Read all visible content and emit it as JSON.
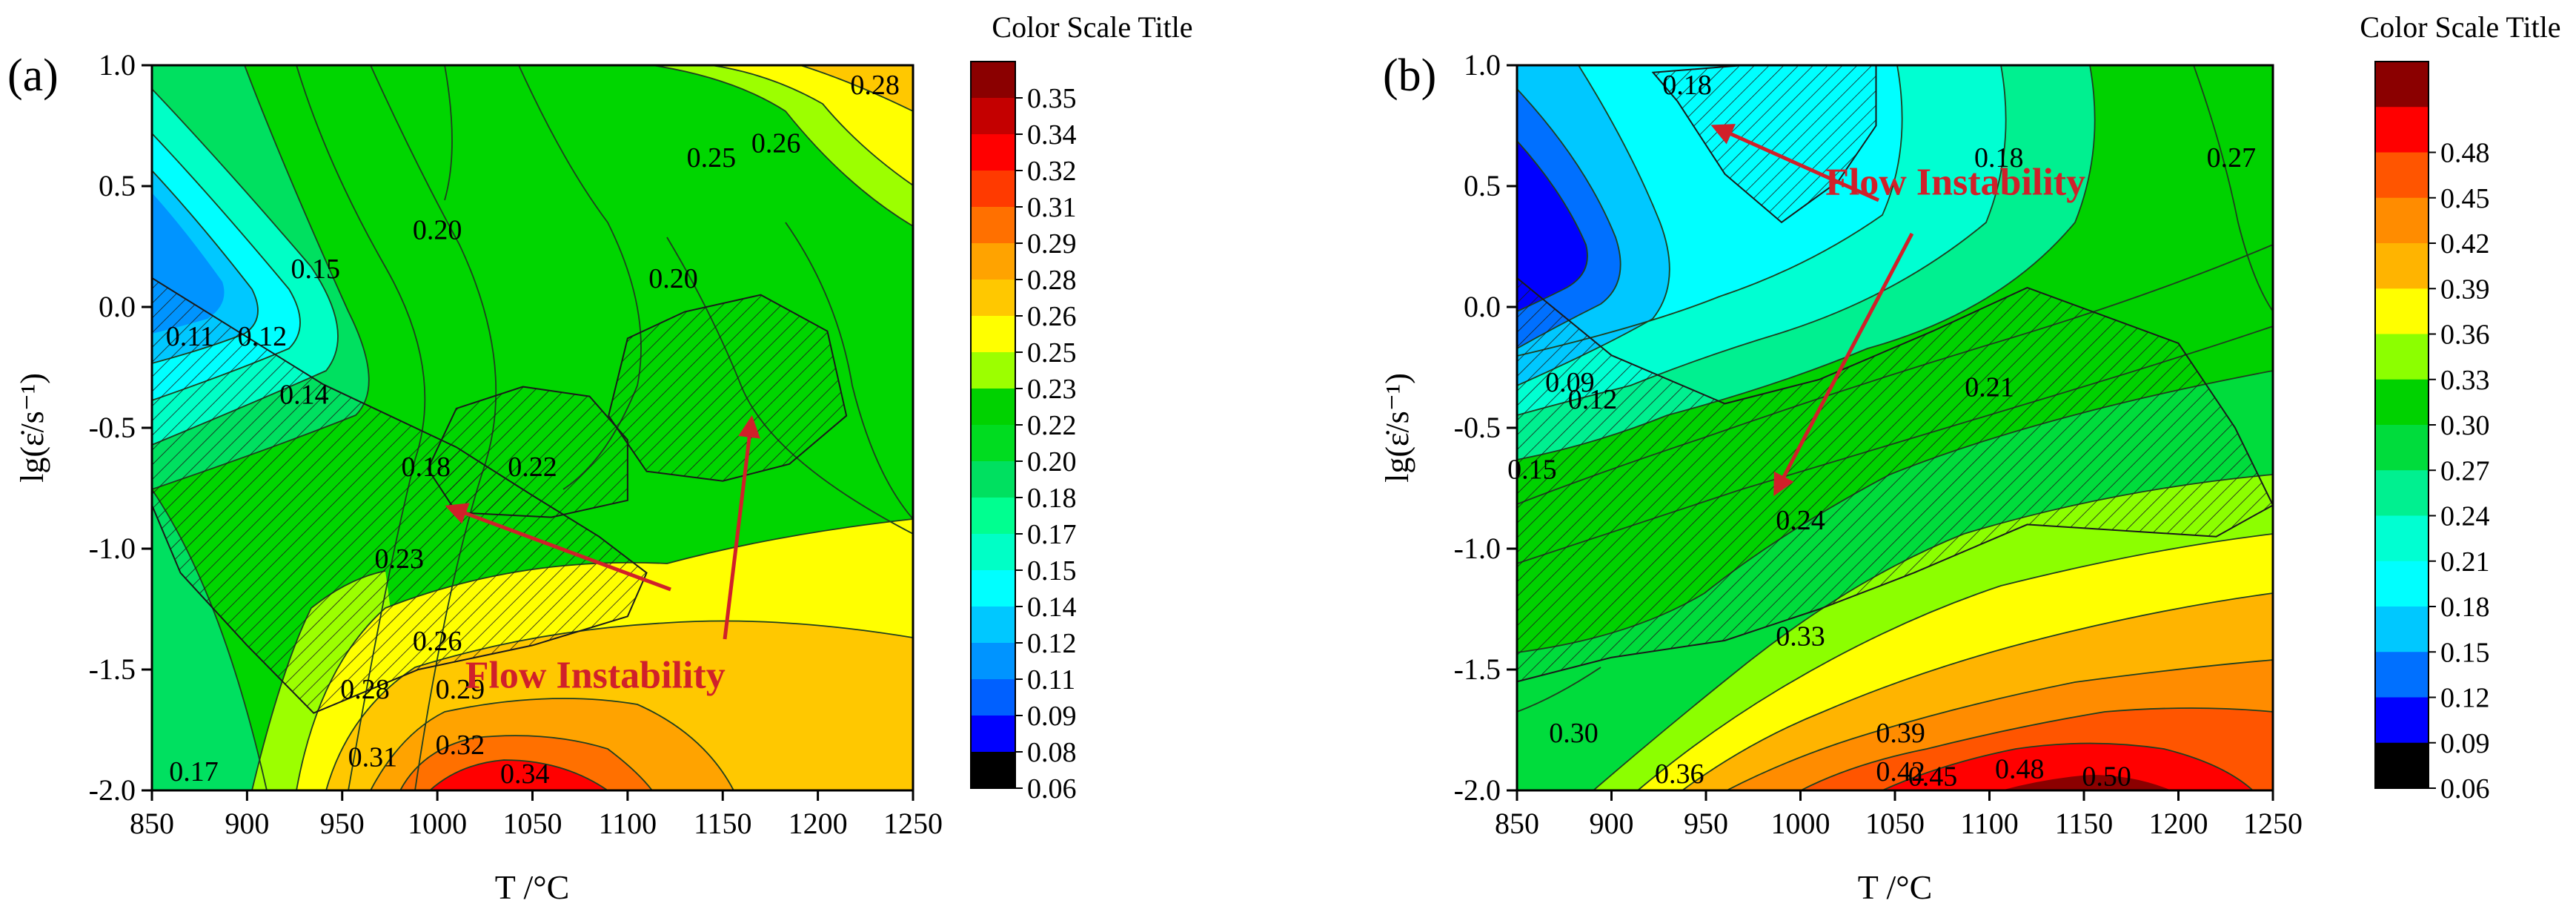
{
  "figure": {
    "panel_a_label": "(a)",
    "panel_b_label": "(b)"
  },
  "chart_data": [
    {
      "type": "heatmap",
      "panel": "(a)",
      "subtype": "contour (processing map)",
      "title": "",
      "xlabel": "T /°C",
      "ylabel": "lg(ε̇/s⁻¹)",
      "xlim": [
        850,
        1250
      ],
      "ylim": [
        -2.0,
        1.0
      ],
      "x_ticks": [
        "850",
        "900",
        "950",
        "1000",
        "1050",
        "1100",
        "1150",
        "1200",
        "1250"
      ],
      "y_ticks": [
        "-2.0",
        "-1.5",
        "-1.0",
        "-0.5",
        "0.0",
        "0.5",
        "1.0"
      ],
      "colorbar": {
        "title": "Color Scale Title",
        "levels": [
          "0.35",
          "0.34",
          "0.32",
          "0.31",
          "0.29",
          "0.28",
          "0.26",
          "0.25",
          "0.23",
          "0.22",
          "0.20",
          "0.18",
          "0.17",
          "0.15",
          "0.14",
          "0.12",
          "0.11",
          "0.09",
          "0.08",
          "0.06"
        ],
        "colors": [
          "#8b0000",
          "#c40000",
          "#ff0000",
          "#ff3a00",
          "#ff7000",
          "#ffa300",
          "#ffc800",
          "#ffff00",
          "#9cff00",
          "#00d200",
          "#00dc20",
          "#00e060",
          "#00ff90",
          "#00ffc6",
          "#00ffff",
          "#00c8ff",
          "#0094ff",
          "#0060ff",
          "#0000ff",
          "#000000"
        ]
      },
      "contour_labels": [
        {
          "text": "0.28",
          "T": 1230,
          "lg": 0.92
        },
        {
          "text": "0.26",
          "T": 1178,
          "lg": 0.68
        },
        {
          "text": "0.25",
          "T": 1144,
          "lg": 0.62
        },
        {
          "text": "0.20",
          "T": 1000,
          "lg": 0.32
        },
        {
          "text": "0.15",
          "T": 936,
          "lg": 0.16
        },
        {
          "text": "0.20",
          "T": 1124,
          "lg": 0.12
        },
        {
          "text": "0.11",
          "T": 870,
          "lg": -0.12
        },
        {
          "text": "0.12",
          "T": 908,
          "lg": -0.12
        },
        {
          "text": "0.14",
          "T": 930,
          "lg": -0.36
        },
        {
          "text": "0.18",
          "T": 994,
          "lg": -0.66
        },
        {
          "text": "0.22",
          "T": 1050,
          "lg": -0.66
        },
        {
          "text": "0.23",
          "T": 980,
          "lg": -1.04
        },
        {
          "text": "0.26",
          "T": 1000,
          "lg": -1.38
        },
        {
          "text": "0.28",
          "T": 962,
          "lg": -1.58
        },
        {
          "text": "0.29",
          "T": 1012,
          "lg": -1.58
        },
        {
          "text": "0.31",
          "T": 966,
          "lg": -1.86
        },
        {
          "text": "0.32",
          "T": 1012,
          "lg": -1.81
        },
        {
          "text": "0.34",
          "T": 1046,
          "lg": -1.93
        },
        {
          "text": "0.17",
          "T": 872,
          "lg": -1.92
        }
      ],
      "annotation": {
        "text": "Flow Instability",
        "T": 1083,
        "lg": -1.52
      },
      "instability_regions": [
        {
          "name": "left-diagonal",
          "vertices": [
            [
              850,
              0.12
            ],
            [
              940,
              -0.32
            ],
            [
              1010,
              -0.58
            ],
            [
              1050,
              -0.78
            ],
            [
              1085,
              -0.95
            ],
            [
              1110,
              -1.1
            ],
            [
              1100,
              -1.28
            ],
            [
              1050,
              -1.4
            ],
            [
              990,
              -1.5
            ],
            [
              935,
              -1.68
            ],
            [
              900,
              -1.4
            ],
            [
              865,
              -1.1
            ],
            [
              850,
              -0.82
            ]
          ]
        },
        {
          "name": "center",
          "vertices": [
            [
              995,
              -0.67
            ],
            [
              1010,
              -0.42
            ],
            [
              1045,
              -0.33
            ],
            [
              1080,
              -0.37
            ],
            [
              1100,
              -0.55
            ],
            [
              1100,
              -0.8
            ],
            [
              1060,
              -0.87
            ],
            [
              1010,
              -0.85
            ]
          ]
        },
        {
          "name": "right",
          "vertices": [
            [
              1090,
              -0.45
            ],
            [
              1100,
              -0.13
            ],
            [
              1130,
              -0.02
            ],
            [
              1170,
              0.05
            ],
            [
              1205,
              -0.1
            ],
            [
              1215,
              -0.45
            ],
            [
              1185,
              -0.65
            ],
            [
              1150,
              -0.72
            ],
            [
              1110,
              -0.68
            ]
          ]
        }
      ]
    },
    {
      "type": "heatmap",
      "panel": "(b)",
      "subtype": "contour (processing map)",
      "title": "",
      "xlabel": "T /°C",
      "ylabel": "lg(ε̇/s⁻¹)",
      "xlim": [
        850,
        1250
      ],
      "ylim": [
        -2.0,
        1.0
      ],
      "x_ticks": [
        "850",
        "900",
        "950",
        "1000",
        "1050",
        "1100",
        "1150",
        "1200",
        "1250"
      ],
      "y_ticks": [
        "-2.0",
        "-1.5",
        "-1.0",
        "-0.5",
        "0.0",
        "0.5",
        "1.0"
      ],
      "colorbar": {
        "title": "Color Scale Title",
        "levels": [
          "",
          "0.48",
          "0.45",
          "0.42",
          "0.39",
          "0.36",
          "0.33",
          "0.30",
          "0.27",
          "0.24",
          "0.21",
          "0.18",
          "0.15",
          "0.12",
          "0.09",
          "0.06"
        ],
        "colors": [
          "#8b0000",
          "#ff0000",
          "#ff5500",
          "#ff8c00",
          "#ffb400",
          "#ffff00",
          "#8cff00",
          "#00d200",
          "#00dc3c",
          "#00f090",
          "#00ffd2",
          "#00ffff",
          "#00c8ff",
          "#0070ff",
          "#0000ff",
          "#000000"
        ]
      },
      "contour_labels": [
        {
          "text": "0.18",
          "T": 940,
          "lg": 0.92
        },
        {
          "text": "0.18",
          "T": 1105,
          "lg": 0.62
        },
        {
          "text": "0.27",
          "T": 1228,
          "lg": 0.62
        },
        {
          "text": "0.09",
          "T": 878,
          "lg": -0.31
        },
        {
          "text": "0.12",
          "T": 890,
          "lg": -0.38
        },
        {
          "text": "0.21",
          "T": 1100,
          "lg": -0.33
        },
        {
          "text": "0.15",
          "T": 858,
          "lg": -0.67
        },
        {
          "text": "0.24",
          "T": 1000,
          "lg": -0.88
        },
        {
          "text": "0.33",
          "T": 1000,
          "lg": -1.36
        },
        {
          "text": "0.30",
          "T": 880,
          "lg": -1.76
        },
        {
          "text": "0.39",
          "T": 1053,
          "lg": -1.76
        },
        {
          "text": "0.36",
          "T": 936,
          "lg": -1.93
        },
        {
          "text": "0.42",
          "T": 1053,
          "lg": -1.92
        },
        {
          "text": "0.45",
          "T": 1070,
          "lg": -1.94
        },
        {
          "text": "0.48",
          "T": 1116,
          "lg": -1.91
        },
        {
          "text": "0.50",
          "T": 1162,
          "lg": -1.94
        }
      ],
      "annotation": {
        "text": "Flow Instability",
        "T": 1082,
        "lg": 0.52
      },
      "instability_regions": [
        {
          "name": "top",
          "vertices": [
            [
              922,
              0.97
            ],
            [
              970,
              1.0
            ],
            [
              1040,
              1.0
            ],
            [
              1040,
              0.75
            ],
            [
              1020,
              0.52
            ],
            [
              990,
              0.35
            ],
            [
              960,
              0.55
            ],
            [
              935,
              0.85
            ]
          ]
        },
        {
          "name": "main-band",
          "vertices": [
            [
              850,
              0.12
            ],
            [
              900,
              -0.2
            ],
            [
              960,
              -0.4
            ],
            [
              1010,
              -0.3
            ],
            [
              1070,
              -0.1
            ],
            [
              1120,
              0.08
            ],
            [
              1200,
              -0.15
            ],
            [
              1230,
              -0.5
            ],
            [
              1250,
              -0.82
            ],
            [
              1220,
              -0.95
            ],
            [
              1120,
              -0.9
            ],
            [
              1060,
              -1.1
            ],
            [
              1010,
              -1.25
            ],
            [
              960,
              -1.38
            ],
            [
              900,
              -1.45
            ],
            [
              850,
              -1.55
            ]
          ]
        }
      ]
    }
  ]
}
